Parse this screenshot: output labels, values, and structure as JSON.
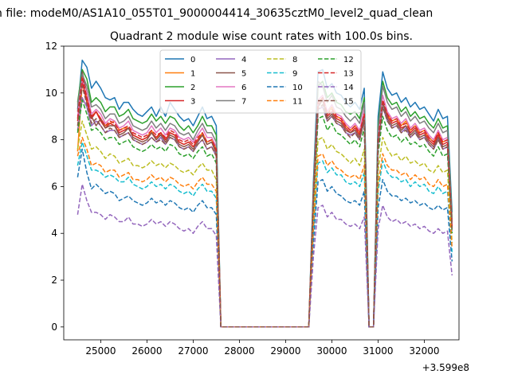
{
  "figure": {
    "suptitle": "n file: modeM0/AS1A10_055T01_9000004414_30635cztM0_level2_quad_clean"
  },
  "chart_data": {
    "type": "line",
    "title": "Quadrant 2 module wise count rates with 100.0s bins.",
    "xlabel": "",
    "ylabel": "",
    "x_offset_label": "+3.599e8",
    "xlim": [
      24200,
      32750
    ],
    "ylim": [
      -0.55,
      12
    ],
    "x_ticks": [
      25000,
      26000,
      27000,
      28000,
      29000,
      30000,
      31000,
      32000
    ],
    "x_tick_labels": [
      "25000",
      "26000",
      "27000",
      "28000",
      "29000",
      "30000",
      "31000",
      "32000"
    ],
    "y_ticks": [
      0,
      2,
      4,
      6,
      8,
      10,
      12
    ],
    "y_tick_labels": [
      "0",
      "2",
      "4",
      "6",
      "8",
      "10",
      "12"
    ],
    "grid": false,
    "legend_placement": "upper center",
    "x": [
      24500,
      24600,
      24700,
      24800,
      24900,
      25000,
      25100,
      25200,
      25300,
      25400,
      25500,
      25600,
      25700,
      25800,
      25900,
      26000,
      26100,
      26200,
      26300,
      26400,
      26500,
      26600,
      26700,
      26800,
      26900,
      27000,
      27100,
      27200,
      27300,
      27400,
      27500,
      27600,
      29500,
      29600,
      29700,
      29800,
      29900,
      30000,
      30100,
      30200,
      30300,
      30400,
      30500,
      30600,
      30700,
      30800,
      30900,
      31000,
      31100,
      31200,
      31300,
      31400,
      31500,
      31600,
      31700,
      31800,
      31900,
      32000,
      32100,
      32200,
      32300,
      32400,
      32500,
      32600
    ],
    "segments": [
      {
        "from": 24500,
        "to": 27600
      },
      {
        "from": 27600,
        "to": 29500,
        "constant": 0
      },
      {
        "from": 29500,
        "to": 30800
      },
      {
        "from": 30800,
        "to": 30900,
        "constant": 0
      },
      {
        "from": 30900,
        "to": 32600
      }
    ],
    "series": [
      {
        "name": "0",
        "color": "#1f77b4",
        "dash": "solid",
        "values": [
          9.3,
          11.4,
          11.1,
          10.2,
          10.5,
          10.2,
          9.8,
          9.7,
          9.8,
          9.3,
          9.6,
          9.6,
          9.3,
          9.1,
          9.0,
          9.2,
          9.4,
          9.0,
          9.4,
          9.0,
          9.6,
          9.3,
          9.0,
          8.8,
          8.9,
          8.6,
          9.0,
          9.4,
          8.9,
          9.0,
          8.6,
          0.0,
          0.0,
          6.2,
          10.9,
          11.0,
          10.2,
          10.4,
          10.0,
          9.9,
          9.6,
          9.4,
          9.6,
          9.3,
          10.2,
          0.4,
          0.0,
          9.0,
          10.9,
          10.2,
          9.9,
          10.0,
          9.6,
          9.8,
          9.4,
          9.6,
          9.3,
          9.4,
          9.1,
          8.8,
          9.3,
          8.9,
          9.0,
          4.9
        ]
      },
      {
        "name": "1",
        "color": "#ff7f0e",
        "dash": "solid",
        "values": [
          7.5,
          10.4,
          9.8,
          9.0,
          9.2,
          8.9,
          8.6,
          8.7,
          8.8,
          8.4,
          8.5,
          8.5,
          8.2,
          8.1,
          8.0,
          8.1,
          8.4,
          8.0,
          8.3,
          8.0,
          8.3,
          8.2,
          7.9,
          7.8,
          7.9,
          7.7,
          8.0,
          8.3,
          7.9,
          8.0,
          7.6,
          0.0,
          0.0,
          5.6,
          9.6,
          9.8,
          9.1,
          9.4,
          9.0,
          8.9,
          8.6,
          8.4,
          8.6,
          8.3,
          9.1,
          0.3,
          0.0,
          8.0,
          9.6,
          9.1,
          8.8,
          8.9,
          8.6,
          8.8,
          8.4,
          8.6,
          8.3,
          8.4,
          8.1,
          7.9,
          8.3,
          7.9,
          8.0,
          4.3
        ]
      },
      {
        "name": "2",
        "color": "#2ca02c",
        "dash": "solid",
        "values": [
          9.6,
          11.0,
          10.6,
          9.6,
          9.8,
          9.6,
          9.2,
          9.4,
          9.4,
          9.0,
          9.1,
          9.3,
          8.9,
          8.8,
          8.7,
          8.8,
          9.1,
          8.8,
          9.0,
          8.7,
          9.0,
          8.9,
          8.6,
          8.4,
          8.6,
          8.3,
          8.6,
          9.0,
          8.6,
          8.6,
          8.2,
          0.0,
          0.0,
          5.9,
          10.3,
          10.5,
          9.8,
          10.0,
          9.6,
          9.5,
          9.2,
          9.1,
          9.2,
          8.9,
          9.8,
          0.3,
          0.0,
          8.6,
          10.5,
          9.8,
          9.5,
          9.6,
          9.2,
          9.4,
          9.0,
          9.2,
          8.9,
          9.0,
          8.7,
          8.5,
          8.9,
          8.5,
          8.6,
          4.6
        ]
      },
      {
        "name": "3",
        "color": "#d62728",
        "dash": "solid",
        "values": [
          8.8,
          10.5,
          9.6,
          8.9,
          9.2,
          8.8,
          8.5,
          8.7,
          8.6,
          8.3,
          8.4,
          8.5,
          8.2,
          8.1,
          8.0,
          8.1,
          8.3,
          8.1,
          8.3,
          8.0,
          8.3,
          8.2,
          7.9,
          7.8,
          7.9,
          7.7,
          8.0,
          8.2,
          7.8,
          7.9,
          7.5,
          0.0,
          0.0,
          5.5,
          9.5,
          9.7,
          9.0,
          9.2,
          8.9,
          8.8,
          8.5,
          8.3,
          8.5,
          8.2,
          9.0,
          0.3,
          0.0,
          7.9,
          9.6,
          9.0,
          8.7,
          8.8,
          8.5,
          8.6,
          8.3,
          8.5,
          8.2,
          8.3,
          8.0,
          7.8,
          8.2,
          7.8,
          7.9,
          4.2
        ]
      },
      {
        "name": "4",
        "color": "#9467bd",
        "dash": "solid",
        "values": [
          8.4,
          9.8,
          9.4,
          8.6,
          8.8,
          8.6,
          8.3,
          8.4,
          8.4,
          8.1,
          8.2,
          8.3,
          8.0,
          7.9,
          7.8,
          7.9,
          8.1,
          7.9,
          8.1,
          7.8,
          8.1,
          8.0,
          7.7,
          7.6,
          7.7,
          7.5,
          7.8,
          8.0,
          7.6,
          7.7,
          7.3,
          0.0,
          0.0,
          5.4,
          9.3,
          9.4,
          8.8,
          9.0,
          8.7,
          8.6,
          8.3,
          8.2,
          8.3,
          8.0,
          8.8,
          0.3,
          0.0,
          7.7,
          9.4,
          8.8,
          8.5,
          8.6,
          8.3,
          8.5,
          8.1,
          8.3,
          8.0,
          8.1,
          7.8,
          7.6,
          8.0,
          7.6,
          7.7,
          4.1
        ]
      },
      {
        "name": "5",
        "color": "#8c564b",
        "dash": "solid",
        "values": [
          9.2,
          10.9,
          10.0,
          9.0,
          8.6,
          8.9,
          8.5,
          8.6,
          8.6,
          8.2,
          8.3,
          8.5,
          8.1,
          8.0,
          7.9,
          8.0,
          8.3,
          8.0,
          8.2,
          7.9,
          8.2,
          8.1,
          7.8,
          7.7,
          7.8,
          7.6,
          7.9,
          8.2,
          7.8,
          7.9,
          7.4,
          0.0,
          0.0,
          5.5,
          9.4,
          9.7,
          8.9,
          9.1,
          8.8,
          8.7,
          8.4,
          8.3,
          8.4,
          8.1,
          8.9,
          0.3,
          0.0,
          7.8,
          9.6,
          8.9,
          8.6,
          8.7,
          8.4,
          8.6,
          8.2,
          8.4,
          8.1,
          8.2,
          7.9,
          7.7,
          8.1,
          7.7,
          7.8,
          4.2
        ]
      },
      {
        "name": "6",
        "color": "#e377c2",
        "dash": "solid",
        "values": [
          9.0,
          10.6,
          10.0,
          9.1,
          9.3,
          9.1,
          8.7,
          8.9,
          8.8,
          8.5,
          8.6,
          8.8,
          8.4,
          8.3,
          8.2,
          8.3,
          8.6,
          8.3,
          8.5,
          8.2,
          8.5,
          8.4,
          8.1,
          8.0,
          8.1,
          7.9,
          8.2,
          8.5,
          8.1,
          8.1,
          7.7,
          0.0,
          0.0,
          5.6,
          9.7,
          9.9,
          9.2,
          9.5,
          9.1,
          9.0,
          8.7,
          8.5,
          8.7,
          8.4,
          9.3,
          0.3,
          0.0,
          8.1,
          9.9,
          9.2,
          8.9,
          9.0,
          8.7,
          8.9,
          8.5,
          8.7,
          8.4,
          8.5,
          8.2,
          8.0,
          8.4,
          8.0,
          8.1,
          4.4
        ]
      },
      {
        "name": "7",
        "color": "#7f7f7f",
        "dash": "solid",
        "values": [
          9.5,
          10.8,
          10.3,
          9.4,
          9.5,
          9.3,
          8.9,
          9.1,
          9.1,
          8.7,
          8.8,
          9.0,
          8.6,
          8.5,
          8.4,
          8.5,
          8.8,
          8.5,
          8.7,
          8.4,
          8.7,
          8.6,
          8.3,
          8.2,
          8.3,
          8.0,
          8.4,
          8.7,
          8.3,
          8.3,
          7.9,
          0.0,
          0.0,
          5.8,
          10.5,
          10.3,
          9.6,
          9.9,
          9.4,
          9.3,
          9.0,
          8.8,
          9.0,
          8.7,
          9.6,
          0.3,
          0.0,
          8.4,
          10.3,
          9.6,
          9.3,
          9.4,
          9.0,
          9.2,
          8.8,
          9.0,
          8.7,
          8.8,
          8.5,
          8.3,
          8.7,
          8.3,
          8.4,
          4.5
        ]
      },
      {
        "name": "8",
        "color": "#bcbd22",
        "dash": "dashed",
        "values": [
          7.6,
          8.8,
          8.2,
          7.6,
          7.7,
          7.5,
          7.2,
          7.4,
          7.3,
          7.0,
          7.1,
          7.2,
          6.9,
          6.9,
          6.8,
          6.9,
          7.1,
          6.9,
          7.0,
          6.8,
          7.0,
          6.9,
          6.7,
          6.6,
          6.7,
          6.5,
          6.8,
          7.0,
          6.7,
          6.7,
          6.3,
          0.0,
          0.0,
          4.7,
          8.0,
          8.1,
          7.6,
          7.8,
          7.5,
          7.4,
          7.2,
          7.0,
          7.2,
          6.9,
          7.6,
          0.3,
          0.0,
          6.7,
          8.1,
          7.6,
          7.3,
          7.4,
          7.1,
          7.3,
          7.0,
          7.1,
          6.9,
          7.0,
          6.7,
          6.6,
          6.9,
          6.6,
          6.7,
          3.6
        ]
      },
      {
        "name": "9",
        "color": "#17becf",
        "dash": "dashed",
        "values": [
          6.9,
          7.9,
          7.3,
          6.7,
          6.7,
          6.6,
          6.4,
          6.5,
          6.4,
          6.2,
          6.2,
          6.4,
          6.1,
          6.0,
          5.9,
          6.0,
          6.2,
          6.0,
          6.1,
          5.9,
          6.1,
          6.0,
          5.8,
          5.7,
          5.8,
          5.6,
          5.9,
          6.1,
          5.8,
          5.8,
          5.5,
          0.0,
          0.0,
          4.1,
          7.0,
          7.1,
          6.6,
          6.8,
          6.5,
          6.5,
          6.2,
          6.1,
          6.2,
          6.0,
          6.6,
          0.2,
          0.0,
          5.8,
          7.1,
          6.6,
          6.4,
          6.4,
          6.2,
          6.3,
          6.0,
          6.2,
          6.0,
          6.1,
          5.8,
          5.7,
          6.0,
          5.7,
          5.8,
          3.2
        ]
      },
      {
        "name": "10",
        "color": "#1f77b4",
        "dash": "dashed",
        "values": [
          6.4,
          7.6,
          6.6,
          5.9,
          6.1,
          5.9,
          5.7,
          5.8,
          5.7,
          5.4,
          5.5,
          5.6,
          5.4,
          5.3,
          5.2,
          5.3,
          5.5,
          5.3,
          5.4,
          5.2,
          5.4,
          5.3,
          5.1,
          5.0,
          5.1,
          4.9,
          5.2,
          5.4,
          5.1,
          5.1,
          4.8,
          0.0,
          0.0,
          3.6,
          6.2,
          6.3,
          5.8,
          6.0,
          5.7,
          5.6,
          5.4,
          5.3,
          5.4,
          5.2,
          5.8,
          0.2,
          0.0,
          5.1,
          6.3,
          5.8,
          5.6,
          5.6,
          5.4,
          5.5,
          5.3,
          5.4,
          5.2,
          5.3,
          5.1,
          5.0,
          5.2,
          5.0,
          5.1,
          2.8
        ]
      },
      {
        "name": "11",
        "color": "#ff7f0e",
        "dash": "dashed",
        "values": [
          7.3,
          8.1,
          7.6,
          6.9,
          7.0,
          6.9,
          6.6,
          6.7,
          6.7,
          6.4,
          6.5,
          6.6,
          6.3,
          6.3,
          6.2,
          6.3,
          6.5,
          6.3,
          6.4,
          6.2,
          6.4,
          6.3,
          6.1,
          6.0,
          6.1,
          5.9,
          6.2,
          6.4,
          6.1,
          6.1,
          5.8,
          0.0,
          0.0,
          4.3,
          7.3,
          7.4,
          6.9,
          7.1,
          6.8,
          6.7,
          6.5,
          6.4,
          6.5,
          6.3,
          6.9,
          0.2,
          0.0,
          6.1,
          7.4,
          6.9,
          6.7,
          6.7,
          6.5,
          6.6,
          6.3,
          6.5,
          6.3,
          6.4,
          6.1,
          6.0,
          6.3,
          6.0,
          6.1,
          3.4
        ]
      },
      {
        "name": "12",
        "color": "#2ca02c",
        "dash": "dashed",
        "values": [
          8.3,
          9.7,
          9.1,
          8.4,
          8.5,
          8.3,
          8.0,
          8.1,
          8.1,
          7.8,
          7.9,
          8.0,
          7.7,
          7.6,
          7.5,
          7.6,
          7.8,
          7.6,
          7.7,
          7.5,
          7.8,
          7.7,
          7.4,
          7.3,
          7.4,
          7.2,
          7.5,
          7.7,
          7.3,
          7.4,
          7.0,
          0.0,
          0.0,
          5.2,
          8.9,
          9.0,
          8.4,
          8.7,
          8.3,
          8.2,
          8.0,
          7.8,
          8.0,
          7.7,
          8.5,
          0.3,
          0.0,
          7.4,
          9.0,
          8.4,
          8.1,
          8.2,
          7.9,
          8.1,
          7.8,
          7.9,
          7.7,
          7.8,
          7.5,
          7.3,
          7.7,
          7.3,
          7.4,
          4.0
        ]
      },
      {
        "name": "13",
        "color": "#d62728",
        "dash": "dashed",
        "values": [
          8.9,
          10.7,
          9.8,
          9.0,
          9.2,
          8.9,
          8.6,
          8.8,
          8.7,
          8.4,
          8.5,
          8.6,
          8.3,
          8.2,
          8.1,
          8.2,
          8.4,
          8.2,
          8.3,
          8.1,
          8.4,
          8.3,
          8.0,
          7.9,
          8.0,
          7.8,
          8.1,
          8.3,
          7.9,
          8.0,
          7.6,
          0.0,
          0.0,
          5.6,
          9.6,
          9.8,
          9.1,
          9.3,
          9.0,
          8.9,
          8.6,
          8.4,
          8.6,
          8.3,
          9.1,
          0.3,
          0.0,
          8.0,
          9.7,
          9.1,
          8.8,
          8.9,
          8.6,
          8.7,
          8.4,
          8.6,
          8.3,
          8.4,
          8.1,
          7.9,
          8.3,
          7.9,
          8.0,
          4.3
        ]
      },
      {
        "name": "14",
        "color": "#9467bd",
        "dash": "dashed",
        "values": [
          4.8,
          6.1,
          5.4,
          4.9,
          4.9,
          4.8,
          4.6,
          4.8,
          4.7,
          4.5,
          4.5,
          4.7,
          4.4,
          4.4,
          4.3,
          4.4,
          4.6,
          4.4,
          4.5,
          4.3,
          4.5,
          4.4,
          4.2,
          4.1,
          4.2,
          4.0,
          4.3,
          4.5,
          4.2,
          4.2,
          3.9,
          0.0,
          0.0,
          3.0,
          5.1,
          5.2,
          4.7,
          4.9,
          4.6,
          4.6,
          4.4,
          4.3,
          4.4,
          4.2,
          4.7,
          0.2,
          0.0,
          4.2,
          5.2,
          4.7,
          4.5,
          4.6,
          4.4,
          4.5,
          4.3,
          4.4,
          4.2,
          4.3,
          4.1,
          4.0,
          4.2,
          4.0,
          4.1,
          2.2
        ]
      },
      {
        "name": "15",
        "color": "#8c564b",
        "dash": "dashed",
        "values": [
          8.6,
          10.3,
          9.5,
          8.7,
          8.9,
          8.6,
          8.3,
          8.5,
          8.4,
          8.1,
          8.2,
          8.3,
          8.0,
          7.9,
          7.8,
          7.9,
          8.1,
          7.9,
          8.0,
          7.8,
          8.1,
          8.0,
          7.7,
          7.6,
          7.7,
          7.5,
          7.8,
          8.0,
          7.6,
          7.7,
          7.3,
          0.0,
          0.0,
          5.4,
          9.3,
          9.5,
          8.8,
          9.0,
          8.7,
          8.6,
          8.3,
          8.1,
          8.3,
          8.0,
          8.8,
          0.3,
          0.0,
          7.7,
          9.4,
          8.8,
          8.5,
          8.6,
          8.3,
          8.4,
          8.1,
          8.3,
          8.0,
          8.1,
          7.8,
          7.6,
          8.0,
          7.6,
          7.7,
          4.2
        ]
      }
    ]
  }
}
